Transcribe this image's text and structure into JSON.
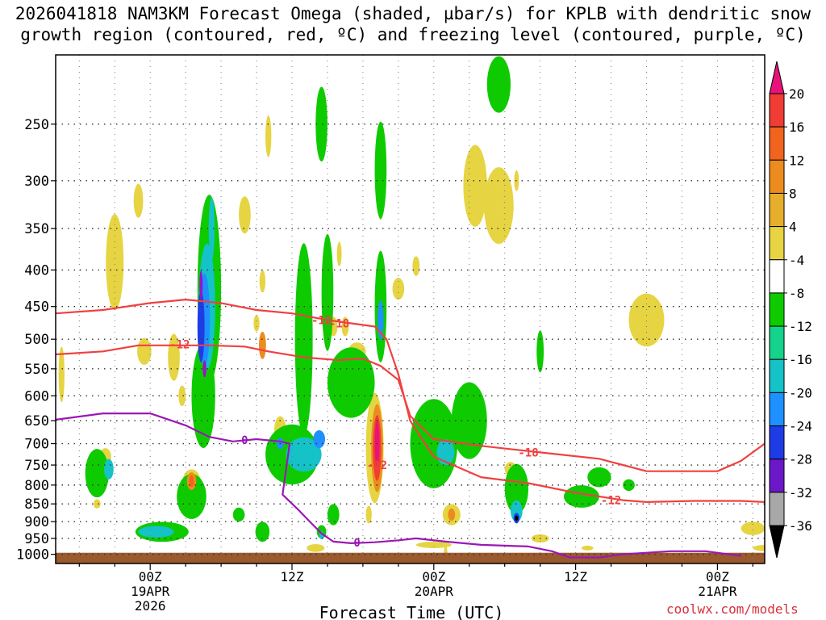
{
  "chart_data": {
    "type": "heatmap",
    "title_line1": "2026041818 NAM3KM Forecast Omega (shaded, µbar/s) for KPLB with dendritic snow",
    "title_line2": "growth region (contoured, red, ºC) and freezing level (contoured, purple, ºC)",
    "xlabel": "Forecast Time (UTC)",
    "ylabel": "",
    "y_ticks": [
      250,
      300,
      350,
      400,
      450,
      500,
      550,
      600,
      650,
      700,
      750,
      800,
      850,
      900,
      950,
      1000
    ],
    "y_range_hpa": [
      1030,
      200
    ],
    "x_range_hours": [
      -8,
      52
    ],
    "x_ticks": [
      {
        "hour": 0,
        "label": "00Z",
        "sub1": "19APR",
        "sub2": "2026"
      },
      {
        "hour": 12,
        "label": "12Z",
        "sub1": "",
        "sub2": ""
      },
      {
        "hour": 24,
        "label": "00Z",
        "sub1": "20APR",
        "sub2": ""
      },
      {
        "hour": 36,
        "label": "12Z",
        "sub1": "",
        "sub2": ""
      },
      {
        "hour": 48,
        "label": "00Z",
        "sub1": "21APR",
        "sub2": ""
      }
    ],
    "colorbar": {
      "units": "µbar/s",
      "labels": [
        20,
        16,
        12,
        8,
        4,
        -4,
        -8,
        -12,
        -16,
        -20,
        -24,
        -28,
        -32,
        -36
      ],
      "colors": [
        "#e8127a",
        "#f03c32",
        "#f0641e",
        "#ec8c1e",
        "#e6ae2c",
        "#e6d442",
        "#ffffff",
        "#0ecb00",
        "#15d38a",
        "#14c2c8",
        "#1e90ff",
        "#1e3ce6",
        "#6a18c8",
        "#9e10c8",
        "#a8a8a8",
        "#000000"
      ]
    },
    "contours": {
      "dgz_minus12": {
        "label": "-12",
        "color": "#f04040",
        "points": [
          [
            -8,
            525
          ],
          [
            -4,
            520
          ],
          [
            -1,
            510
          ],
          [
            2,
            510
          ],
          [
            5,
            510
          ],
          [
            8,
            512
          ],
          [
            10,
            520
          ],
          [
            13,
            530
          ],
          [
            16,
            535
          ],
          [
            18,
            532
          ],
          [
            19.5,
            545
          ],
          [
            21,
            570
          ],
          [
            22,
            640
          ],
          [
            24,
            690
          ],
          [
            28,
            705
          ],
          [
            33,
            720
          ],
          [
            38,
            735
          ],
          [
            42,
            765
          ],
          [
            45,
            765
          ],
          [
            48,
            765
          ],
          [
            50,
            740
          ],
          [
            52,
            700
          ]
        ]
      },
      "dgz_minus18": {
        "label": "-18",
        "color": "#f04040",
        "points": [
          [
            -8,
            460
          ],
          [
            -4,
            455
          ],
          [
            0,
            445
          ],
          [
            3,
            440
          ],
          [
            6,
            445
          ],
          [
            9,
            455
          ],
          [
            12,
            460
          ],
          [
            15,
            470
          ],
          [
            17,
            475
          ],
          [
            19,
            480
          ],
          [
            20,
            500
          ],
          [
            21,
            560
          ],
          [
            22,
            650
          ],
          [
            23,
            690
          ],
          [
            24,
            730
          ],
          [
            28,
            780
          ],
          [
            32,
            795
          ],
          [
            36,
            820
          ],
          [
            40,
            840
          ],
          [
            42,
            845
          ],
          [
            46,
            842
          ],
          [
            50,
            842
          ],
          [
            52,
            845
          ]
        ]
      },
      "freezing_level": {
        "label": "0",
        "color": "#9a18b4",
        "points": [
          [
            -8,
            648
          ],
          [
            -4,
            635
          ],
          [
            0,
            635
          ],
          [
            3,
            660
          ],
          [
            5,
            685
          ],
          [
            7,
            695
          ],
          [
            9,
            690
          ],
          [
            11,
            695
          ],
          [
            11.8,
            700
          ],
          [
            11.5,
            760
          ],
          [
            11.2,
            825
          ],
          [
            12.5,
            865
          ],
          [
            13.5,
            900
          ],
          [
            14.5,
            935
          ],
          [
            15.5,
            960
          ],
          [
            17,
            965
          ],
          [
            19,
            962
          ],
          [
            21,
            956
          ],
          [
            22.5,
            950
          ],
          [
            25,
            960
          ],
          [
            28,
            970
          ],
          [
            32,
            975
          ],
          [
            34,
            990
          ],
          [
            35.5,
            1010
          ],
          [
            38,
            1010
          ],
          [
            40,
            1000
          ],
          [
            44,
            990
          ],
          [
            47,
            990
          ],
          [
            50,
            1005
          ]
        ]
      }
    },
    "omega_cells": [
      {
        "t": -7.5,
        "p": 560,
        "dt": 0.5,
        "dp": 100,
        "v": 5
      },
      {
        "t": -3,
        "p": 390,
        "dt": 1.5,
        "dp": 120,
        "v": 5
      },
      {
        "t": -1,
        "p": 320,
        "dt": 0.8,
        "dp": 35,
        "v": 5
      },
      {
        "t": -0.5,
        "p": 520,
        "dt": 1.2,
        "dp": 45,
        "v": 5
      },
      {
        "t": -3.8,
        "p": 730,
        "dt": 1,
        "dp": 40,
        "v": 5
      },
      {
        "t": -4.5,
        "p": 850,
        "dt": 0.6,
        "dp": 25,
        "v": 5
      },
      {
        "t": -4.5,
        "p": 770,
        "dt": 2,
        "dp": 120,
        "v": -6
      },
      {
        "t": -3.5,
        "p": 760,
        "dt": 0.8,
        "dp": 50,
        "v": -12
      },
      {
        "t": 1,
        "p": 930,
        "dt": 4.5,
        "dp": 60,
        "v": -6
      },
      {
        "t": 0.5,
        "p": 930,
        "dt": 3,
        "dp": 35,
        "v": -12
      },
      {
        "t": 2,
        "p": 530,
        "dt": 1,
        "dp": 80,
        "v": 5
      },
      {
        "t": 4.5,
        "p": 600,
        "dt": 2,
        "dp": 200,
        "v": -6
      },
      {
        "t": 3.5,
        "p": 830,
        "dt": 2.5,
        "dp": 120,
        "v": -6
      },
      {
        "t": 3.5,
        "p": 790,
        "dt": 1.5,
        "dp": 60,
        "v": 5
      },
      {
        "t": 3.5,
        "p": 790,
        "dt": 0.8,
        "dp": 45,
        "v": 10
      },
      {
        "t": 3.5,
        "p": 790,
        "dt": 0.4,
        "dp": 30,
        "v": 15
      },
      {
        "t": 2.7,
        "p": 600,
        "dt": 0.6,
        "dp": 40,
        "v": 5
      },
      {
        "t": 5,
        "p": 425,
        "dt": 2,
        "dp": 250,
        "v": -6
      },
      {
        "t": 4.8,
        "p": 450,
        "dt": 1.4,
        "dp": 180,
        "v": -12
      },
      {
        "t": 4.6,
        "p": 470,
        "dt": 0.9,
        "dp": 140,
        "v": -16
      },
      {
        "t": 4.3,
        "p": 480,
        "dt": 0.6,
        "dp": 110,
        "v": -22
      },
      {
        "t": 4.3,
        "p": 420,
        "dt": 0.25,
        "dp": 40,
        "v": -28
      },
      {
        "t": 4.6,
        "p": 550,
        "dt": 0.3,
        "dp": 30,
        "v": -28
      },
      {
        "t": 5.2,
        "p": 350,
        "dt": 0.5,
        "dp": 70,
        "v": -12
      },
      {
        "t": 8,
        "p": 335,
        "dt": 1,
        "dp": 40,
        "v": 5
      },
      {
        "t": 9,
        "p": 475,
        "dt": 0.5,
        "dp": 25,
        "v": 5
      },
      {
        "t": 9.5,
        "p": 510,
        "dt": 0.6,
        "dp": 45,
        "v": 8
      },
      {
        "t": 9.5,
        "p": 415,
        "dt": 0.5,
        "dp": 30,
        "v": 5
      },
      {
        "t": 9.5,
        "p": 930,
        "dt": 1.2,
        "dp": 60,
        "v": -6
      },
      {
        "t": 7.5,
        "p": 880,
        "dt": 1,
        "dp": 40,
        "v": -6
      },
      {
        "t": 10,
        "p": 260,
        "dt": 0.5,
        "dp": 35,
        "v": 5
      },
      {
        "t": 11,
        "p": 670,
        "dt": 1,
        "dp": 60,
        "v": 5
      },
      {
        "t": 13,
        "p": 500,
        "dt": 1.5,
        "dp": 300,
        "v": -6
      },
      {
        "t": 14.5,
        "p": 250,
        "dt": 1,
        "dp": 60,
        "v": -6
      },
      {
        "t": 15,
        "p": 430,
        "dt": 1,
        "dp": 160,
        "v": -6
      },
      {
        "t": 12,
        "p": 725,
        "dt": 4.5,
        "dp": 140,
        "v": -6
      },
      {
        "t": 13,
        "p": 725,
        "dt": 3,
        "dp": 80,
        "v": -12
      },
      {
        "t": 14.3,
        "p": 690,
        "dt": 1,
        "dp": 40,
        "v": -16
      },
      {
        "t": 11,
        "p": 700,
        "dt": 0.6,
        "dp": 25,
        "v": -16
      },
      {
        "t": 17,
        "p": 575,
        "dt": 4,
        "dp": 130,
        "v": -6
      },
      {
        "t": 16.5,
        "p": 480,
        "dt": 0.6,
        "dp": 30,
        "v": 5
      },
      {
        "t": 15.5,
        "p": 480,
        "dt": 0.7,
        "dp": 30,
        "v": 5
      },
      {
        "t": 17.5,
        "p": 520,
        "dt": 1.5,
        "dp": 30,
        "v": 5
      },
      {
        "t": 15.5,
        "p": 880,
        "dt": 1,
        "dp": 60,
        "v": -6
      },
      {
        "t": 14.5,
        "p": 930,
        "dt": 0.8,
        "dp": 40,
        "v": -6
      },
      {
        "t": 14.5,
        "p": 940,
        "dt": 0.4,
        "dp": 25,
        "v": -12
      },
      {
        "t": 14,
        "p": 980,
        "dt": 1.5,
        "dp": 25,
        "v": 5
      },
      {
        "t": 16,
        "p": 380,
        "dt": 0.4,
        "dp": 30,
        "v": 5
      },
      {
        "t": 19.5,
        "p": 450,
        "dt": 1,
        "dp": 160,
        "v": -6
      },
      {
        "t": 19.5,
        "p": 470,
        "dt": 0.5,
        "dp": 60,
        "v": -16
      },
      {
        "t": 19.5,
        "p": 290,
        "dt": 1,
        "dp": 90,
        "v": -6
      },
      {
        "t": 19.5,
        "p": 320,
        "dt": 0.5,
        "dp": 40,
        "v": 5
      },
      {
        "t": 21,
        "p": 425,
        "dt": 1,
        "dp": 30,
        "v": 5
      },
      {
        "t": 19,
        "p": 710,
        "dt": 1.5,
        "dp": 250,
        "v": 5
      },
      {
        "t": 19.2,
        "p": 710,
        "dt": 1,
        "dp": 200,
        "v": 10
      },
      {
        "t": 19.2,
        "p": 710,
        "dt": 0.7,
        "dp": 150,
        "v": 16
      },
      {
        "t": 19.2,
        "p": 700,
        "dt": 0.4,
        "dp": 100,
        "v": 21
      },
      {
        "t": 18.5,
        "p": 880,
        "dt": 0.5,
        "dp": 50,
        "v": 5
      },
      {
        "t": 22.5,
        "p": 395,
        "dt": 0.6,
        "dp": 25,
        "v": 5
      },
      {
        "t": 24,
        "p": 700,
        "dt": 4,
        "dp": 200,
        "v": -6
      },
      {
        "t": 25,
        "p": 720,
        "dt": 1.5,
        "dp": 60,
        "v": -12
      },
      {
        "t": 24.5,
        "p": 760,
        "dt": 1,
        "dp": 25,
        "v": 5
      },
      {
        "t": 27,
        "p": 650,
        "dt": 3,
        "dp": 160,
        "v": -6
      },
      {
        "t": 25.5,
        "p": 880,
        "dt": 1.5,
        "dp": 60,
        "v": 5
      },
      {
        "t": 25.5,
        "p": 880,
        "dt": 0.6,
        "dp": 35,
        "v": 10
      },
      {
        "t": 24,
        "p": 970,
        "dt": 3,
        "dp": 20,
        "v": 5
      },
      {
        "t": 25,
        "p": 1000,
        "dt": 0.3,
        "dp": 60,
        "v": 5
      },
      {
        "t": 27.5,
        "p": 305,
        "dt": 2,
        "dp": 80,
        "v": 5
      },
      {
        "t": 29.5,
        "p": 325,
        "dt": 2.5,
        "dp": 80,
        "v": 5
      },
      {
        "t": 31,
        "p": 300,
        "dt": 0.4,
        "dp": 20,
        "v": 5
      },
      {
        "t": 29.5,
        "p": 220,
        "dt": 2,
        "dp": 40,
        "v": -6
      },
      {
        "t": 31,
        "p": 810,
        "dt": 2,
        "dp": 130,
        "v": -6
      },
      {
        "t": 31,
        "p": 870,
        "dt": 1,
        "dp": 60,
        "v": -12
      },
      {
        "t": 31,
        "p": 890,
        "dt": 0.5,
        "dp": 30,
        "v": -20
      },
      {
        "t": 31,
        "p": 890,
        "dt": 0.2,
        "dp": 15,
        "v": -36
      },
      {
        "t": 33,
        "p": 950,
        "dt": 1.5,
        "dp": 25,
        "v": 5
      },
      {
        "t": 30.5,
        "p": 760,
        "dt": 1,
        "dp": 35,
        "v": 5
      },
      {
        "t": 33,
        "p": 520,
        "dt": 0.6,
        "dp": 70,
        "v": -6
      },
      {
        "t": 36.5,
        "p": 830,
        "dt": 3,
        "dp": 60,
        "v": -6
      },
      {
        "t": 38,
        "p": 780,
        "dt": 2,
        "dp": 50,
        "v": -6
      },
      {
        "t": 40.5,
        "p": 800,
        "dt": 1,
        "dp": 30,
        "v": -6
      },
      {
        "t": 37,
        "p": 980,
        "dt": 1,
        "dp": 15,
        "v": 5
      },
      {
        "t": 42,
        "p": 470,
        "dt": 3,
        "dp": 80,
        "v": 5
      },
      {
        "t": 51,
        "p": 920,
        "dt": 2,
        "dp": 40,
        "v": 5
      },
      {
        "t": 52,
        "p": 980,
        "dt": 2,
        "dp": 20,
        "v": 5
      }
    ],
    "ground_pressure_hpa": 995
  },
  "credit": "coolwx.com/models"
}
